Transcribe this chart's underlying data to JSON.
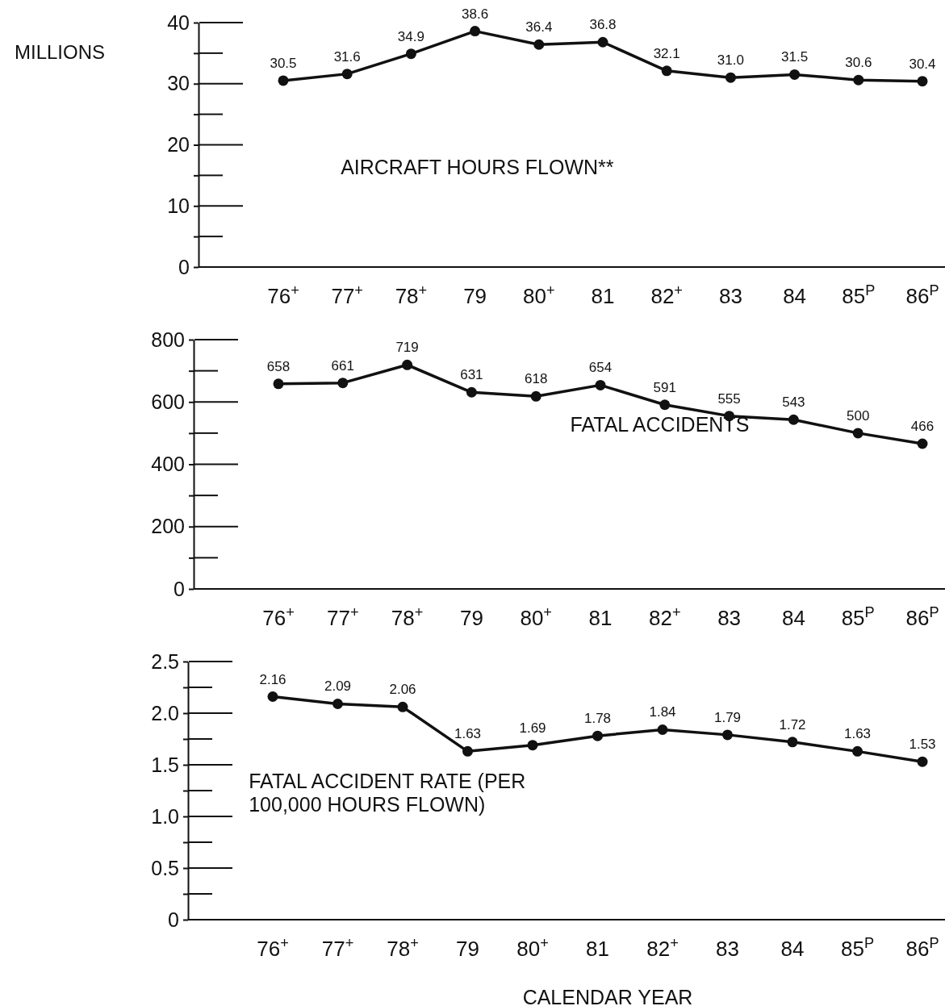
{
  "chart_data": [
    {
      "type": "line",
      "ylabel": "MILLIONS",
      "categories": [
        "76$^{+}$",
        "77$^{+}$",
        "78$^{+}$",
        "79",
        "80$^{+}$",
        "81",
        "82$^{+}$",
        "83",
        "84",
        "85$^{P}$",
        "86$^{P}$"
      ],
      "series": [
        {
          "name": "AIRCRAFT HOURS FLOWN**",
          "color": "#111111",
          "values": [
            30.5,
            31.6,
            34.9,
            38.6,
            36.4,
            36.8,
            32.1,
            31.0,
            31.5,
            30.6,
            30.4
          ],
          "value_labels": [
            "30.5",
            "31.6",
            "34.9",
            "38.6",
            "36.4",
            "36.8",
            "32.1",
            "31.0",
            "31.5",
            "30.6",
            "30.4"
          ]
        }
      ],
      "ylim": [
        0,
        40
      ],
      "yticks": [
        0,
        {
          "value": 5,
          "label": null
        },
        10,
        {
          "value": 15,
          "label": null
        },
        20,
        {
          "value": 25,
          "label": null
        },
        30,
        {
          "value": 35,
          "label": null
        },
        40
      ],
      "marker": "circle",
      "line_style": "solid"
    },
    {
      "type": "line",
      "categories": [
        "76$^{+}$",
        "77$^{+}$",
        "78$^{+}$",
        "79",
        "80$^{+}$",
        "81",
        "82$^{+}$",
        "83",
        "84",
        "85$^{P}$",
        "86$^{P}$"
      ],
      "series": [
        {
          "name": "FATAL ACCIDENTS",
          "color": "#111111",
          "values": [
            658,
            661,
            719,
            631,
            618,
            654,
            591,
            555,
            543,
            500,
            466
          ],
          "value_labels": [
            "658",
            "661",
            "719",
            "631",
            "618",
            "654",
            "591",
            "555",
            "543",
            "500",
            "466"
          ]
        }
      ],
      "ylim": [
        0,
        800
      ],
      "yticks": [
        0,
        {
          "value": 100,
          "label": null
        },
        200,
        {
          "value": 300,
          "label": null
        },
        400,
        {
          "value": 500,
          "label": null
        },
        600,
        {
          "value": 700,
          "label": null
        },
        800
      ],
      "marker": "circle",
      "line_style": "solid"
    },
    {
      "type": "line",
      "xlabel": "CALENDAR YEAR",
      "categories": [
        "76$^{+}$",
        "77$^{+}$",
        "78$^{+}$",
        "79",
        "80$^{+}$",
        "81",
        "82$^{+}$",
        "83",
        "84",
        "85$^{P}$",
        "86$^{P}$"
      ],
      "series": [
        {
          "name": "FATAL ACCIDENT RATE (PER 100,000 HOURS FLOWN)",
          "color": "#111111",
          "values": [
            2.16,
            2.09,
            2.06,
            1.63,
            1.69,
            1.78,
            1.84,
            1.79,
            1.72,
            1.63,
            1.53
          ],
          "value_labels": [
            "2.16",
            "2.09",
            "2.06",
            "1.63",
            "1.69",
            "1.78",
            "1.84",
            "1.79",
            "1.72",
            "1.63",
            "1.53"
          ]
        }
      ],
      "ylim": [
        0,
        2.5
      ],
      "yticks": [
        0,
        {
          "value": 0.25,
          "label": null
        },
        {
          "value": 0.5,
          "label": "0.5"
        },
        {
          "value": 0.75,
          "label": null
        },
        {
          "value": 1,
          "label": "1.0"
        },
        {
          "value": 1.25,
          "label": null
        },
        {
          "value": 1.5,
          "label": "1.5"
        },
        {
          "value": 1.75,
          "label": null
        },
        {
          "value": 2,
          "label": "2.0"
        },
        {
          "value": 2.25,
          "label": null
        },
        {
          "value": 2.5,
          "label": "2.5"
        }
      ],
      "marker": "circle",
      "line_style": "solid"
    }
  ]
}
